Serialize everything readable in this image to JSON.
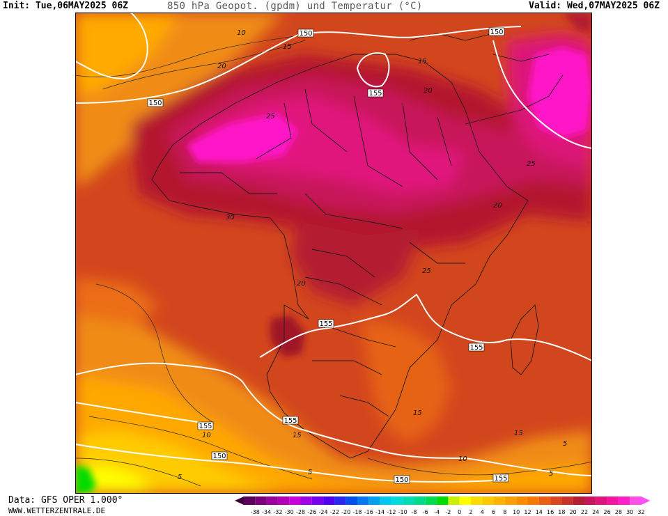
{
  "header": {
    "init": "Init: Tue,06MAY2025 06Z",
    "title": "850 hPa Geopot. (gpdm) und Temperatur (°C)",
    "valid": "Valid: Wed,07MAY2025 06Z"
  },
  "footer": {
    "data_source": "Data: GFS OPER 1.000°",
    "website": "WWW.WETTERZENTRALE.DE"
  },
  "map": {
    "region": "Africa",
    "geopotential_labels": [
      "150",
      "150",
      "155",
      "150",
      "155",
      "155",
      "155",
      "155",
      "150",
      "150",
      "155"
    ],
    "temperature_labels": [
      "10",
      "15",
      "20",
      "20",
      "15",
      "25",
      "20",
      "25",
      "20",
      "30",
      "25",
      "15",
      "15",
      "15",
      "10",
      "10",
      "5",
      "5",
      "5",
      "5"
    ]
  },
  "legend": {
    "ticks": [
      "-38",
      "-34",
      "-32",
      "-30",
      "-28",
      "-26",
      "-24",
      "-22",
      "-20",
      "-18",
      "-16",
      "-14",
      "-12",
      "-10",
      "-8",
      "-6",
      "-4",
      "-2",
      "0",
      "2",
      "4",
      "6",
      "8",
      "10",
      "12",
      "14",
      "16",
      "18",
      "20",
      "22",
      "24",
      "26",
      "28",
      "30",
      "32"
    ],
    "colors": [
      "#5a005a",
      "#7a007a",
      "#9a009a",
      "#b400b4",
      "#c800dc",
      "#a000e6",
      "#7800f0",
      "#5000f0",
      "#2828f0",
      "#0050f0",
      "#0078f0",
      "#00a0f0",
      "#00c8f0",
      "#00dcdc",
      "#00dcb4",
      "#00dc8c",
      "#00dc50",
      "#00dc00",
      "#c8f000",
      "#ffff00",
      "#ffdc00",
      "#ffc800",
      "#ffb400",
      "#ffa000",
      "#ff8c00",
      "#f57800",
      "#eb5f14",
      "#dc461e",
      "#c83228",
      "#b41e32",
      "#c8145a",
      "#e1147d",
      "#f514a0",
      "#ff1ec8",
      "#ff50e6"
    ],
    "colors_above_top": "#ff50ff",
    "colors_below_bottom": "#3c003c"
  }
}
